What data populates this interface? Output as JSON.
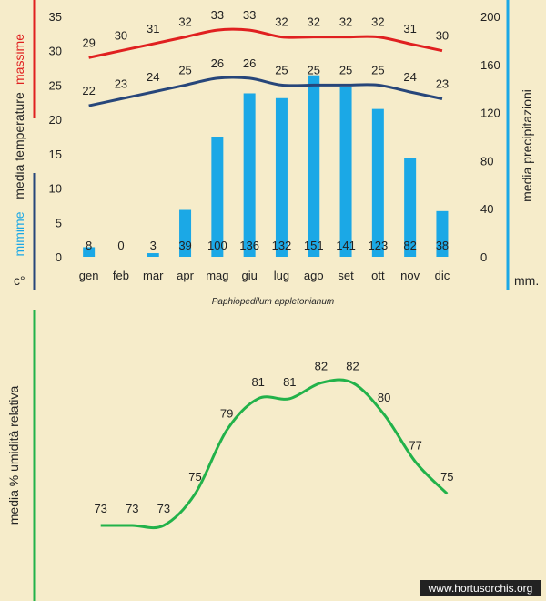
{
  "colors": {
    "background": "#f6ecca",
    "max_line": "#e02020",
    "min_line": "#27467a",
    "bars": "#1ba8e6",
    "humidity_line": "#22b24a"
  },
  "watermark": "www.hortusorchis.org",
  "chart_data": [
    {
      "type": "bar+line",
      "title": "",
      "categories": [
        "gen",
        "feb",
        "mar",
        "apr",
        "mag",
        "giu",
        "lug",
        "ago",
        "set",
        "ott",
        "nov",
        "dic"
      ],
      "left_axis": {
        "label_max": "massime",
        "label_media": "media  temperature",
        "label_min": "mimime",
        "unit": "c°",
        "ylim": [
          0,
          35
        ],
        "ticks": [
          0,
          5,
          10,
          15,
          20,
          25,
          30,
          35
        ]
      },
      "right_axis": {
        "label": "media  precipitazioni",
        "unit": "mm.",
        "ylim": [
          0,
          200
        ],
        "ticks": [
          0,
          40,
          80,
          120,
          160,
          200
        ]
      },
      "series": [
        {
          "name": "massime",
          "kind": "line",
          "axis": "left",
          "values": [
            29,
            30,
            31,
            32,
            33,
            33,
            32,
            32,
            32,
            32,
            31,
            30
          ]
        },
        {
          "name": "mimime",
          "kind": "line",
          "axis": "left",
          "values": [
            22,
            23,
            24,
            25,
            26,
            26,
            25,
            25,
            25,
            25,
            24,
            23
          ]
        },
        {
          "name": "media  precipitazioni",
          "kind": "bar",
          "axis": "right",
          "values": [
            8,
            0,
            3,
            39,
            100,
            136,
            132,
            151,
            141,
            123,
            82,
            38
          ]
        }
      ],
      "grid": false
    },
    {
      "type": "line",
      "title": "Paphiopedilum  appletonianum",
      "categories": [
        "gen",
        "feb",
        "mar",
        "apr",
        "mag",
        "giu",
        "lug",
        "ago",
        "set",
        "ott",
        "nov",
        "dic"
      ],
      "ylabel": "media %  umidità relativa",
      "series": [
        {
          "name": "media %  umidità relativa",
          "values": [
            73,
            73,
            73,
            75,
            79,
            81,
            81,
            82,
            82,
            80,
            77,
            75
          ]
        }
      ],
      "grid": false
    }
  ]
}
